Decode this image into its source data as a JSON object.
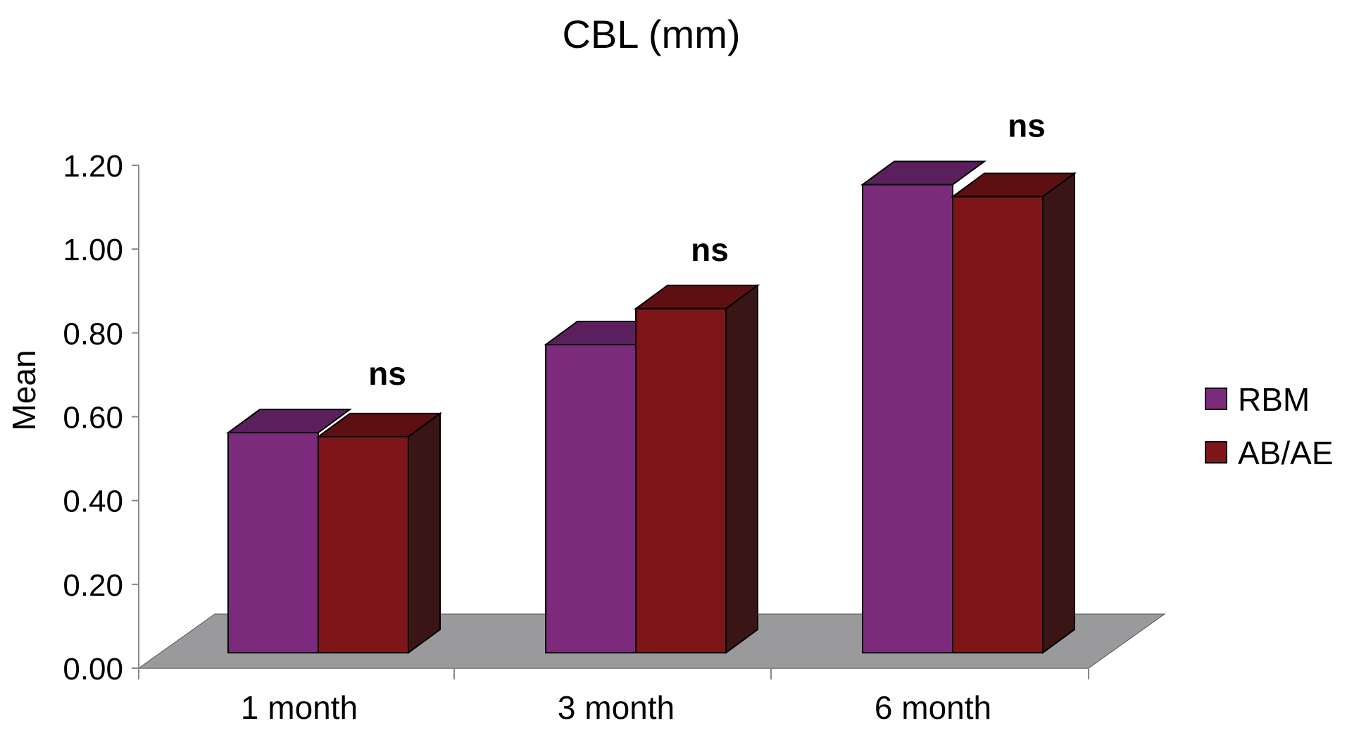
{
  "chart_data": {
    "type": "bar",
    "title": "CBL (mm)",
    "ylabel": "Mean",
    "xlabel": "",
    "ylim": [
      0,
      1.2
    ],
    "yticks": [
      "0.00",
      "0.20",
      "0.40",
      "0.60",
      "0.80",
      "1.00",
      "1.20"
    ],
    "categories": [
      "1 month",
      "3 month",
      "6 month"
    ],
    "series": [
      {
        "name": "RBM",
        "values": [
          0.55,
          0.77,
          1.17
        ],
        "color": "#7B2A7C",
        "top_color": "#5C1F5D",
        "side_color": "#3E1540"
      },
      {
        "name": "AB/AE",
        "values": [
          0.54,
          0.86,
          1.14
        ],
        "color": "#7E1518",
        "top_color": "#5E0F12",
        "side_color": "#3A1515"
      }
    ],
    "annotations": [
      "ns",
      "ns",
      "ns"
    ],
    "floor_color": "#9A9A9C",
    "legend_position": "right",
    "grid": false
  }
}
